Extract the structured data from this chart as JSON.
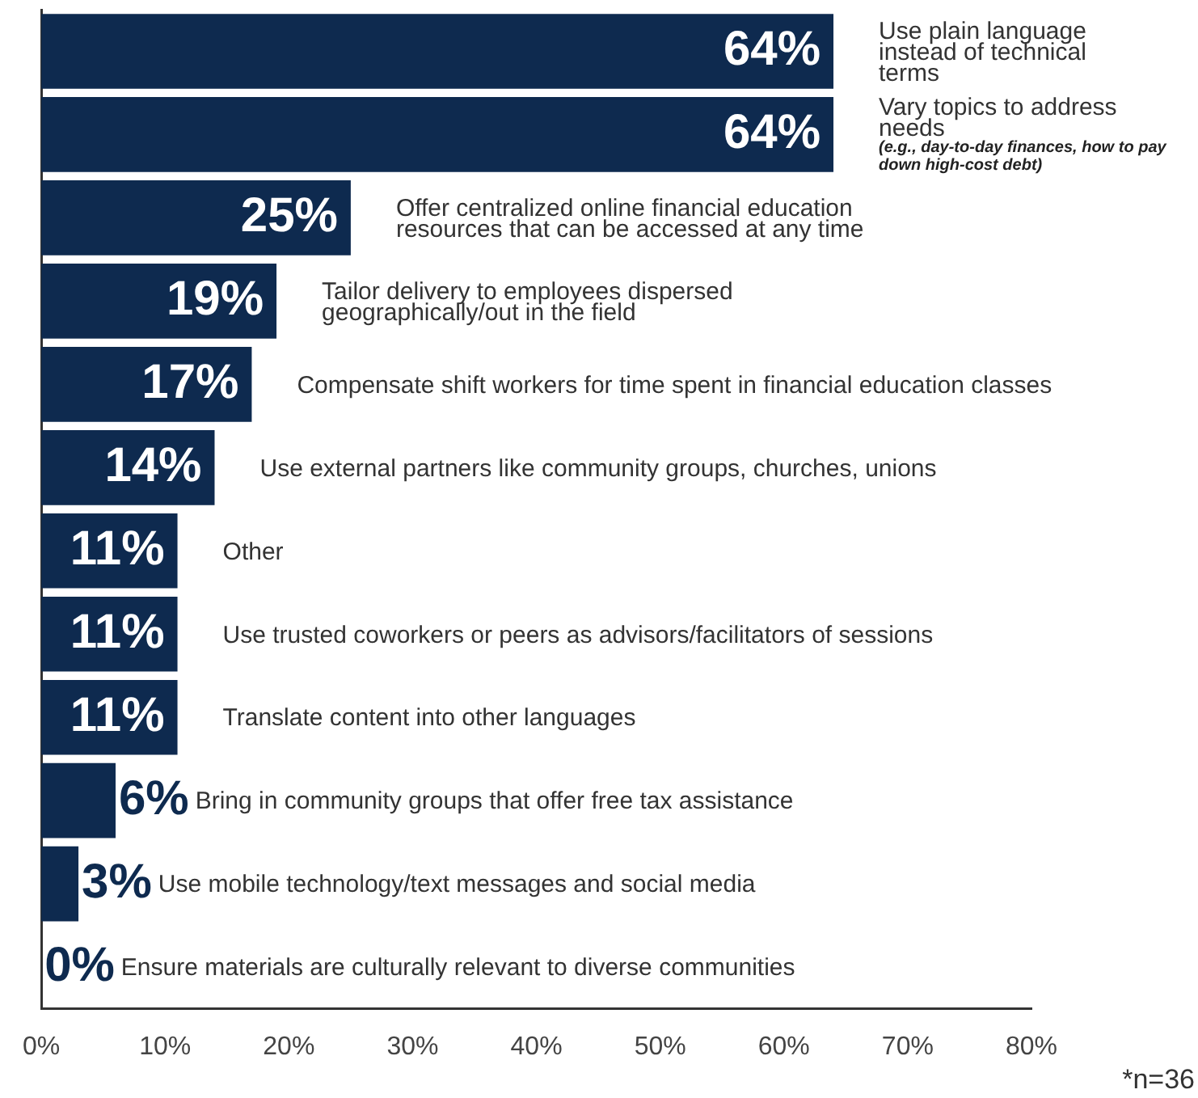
{
  "chart_data": {
    "type": "bar",
    "orientation": "horizontal",
    "categories": [
      "Use plain language instead of technical terms",
      "Vary topics to address needs (e.g., day-to-day finances, how to pay down high-cost debt)",
      "Offer centralized online financial education resources that can be accessed at any time",
      "Tailor delivery to employees dispersed geographically/out in the field",
      "Compensate shift workers for time spent in financial education classes",
      "Use external partners like community groups, churches, unions",
      "Other",
      "Use trusted coworkers or peers as advisors/facilitators of sessions",
      "Translate content into other languages",
      "Bring in community groups that offer free tax assistance",
      "Use mobile technology/text messages and social media",
      "Ensure materials are culturally relevant to diverse communities"
    ],
    "values": [
      64,
      64,
      25,
      19,
      17,
      14,
      11,
      11,
      11,
      6,
      3,
      0
    ],
    "value_labels": [
      "64%",
      "64%",
      "25%",
      "19%",
      "17%",
      "14%",
      "11%",
      "11%",
      "11%",
      "6%",
      "3%",
      "0%"
    ],
    "color": "#0e2a4f",
    "xlim": [
      0,
      80
    ],
    "xticks": [
      {
        "value": 0,
        "label": "0%"
      },
      {
        "value": 10,
        "label": "10%"
      },
      {
        "value": 20,
        "label": "20%"
      },
      {
        "value": 30,
        "label": "30%"
      },
      {
        "value": 40,
        "label": "40%"
      },
      {
        "value": 50,
        "label": "50%"
      },
      {
        "value": 60,
        "label": "60%"
      },
      {
        "value": 70,
        "label": "70%"
      },
      {
        "value": 80,
        "label": "80%"
      }
    ],
    "tick_labels": "x",
    "grid": false,
    "legend": false,
    "annotations": [
      "*n=36"
    ]
  }
}
